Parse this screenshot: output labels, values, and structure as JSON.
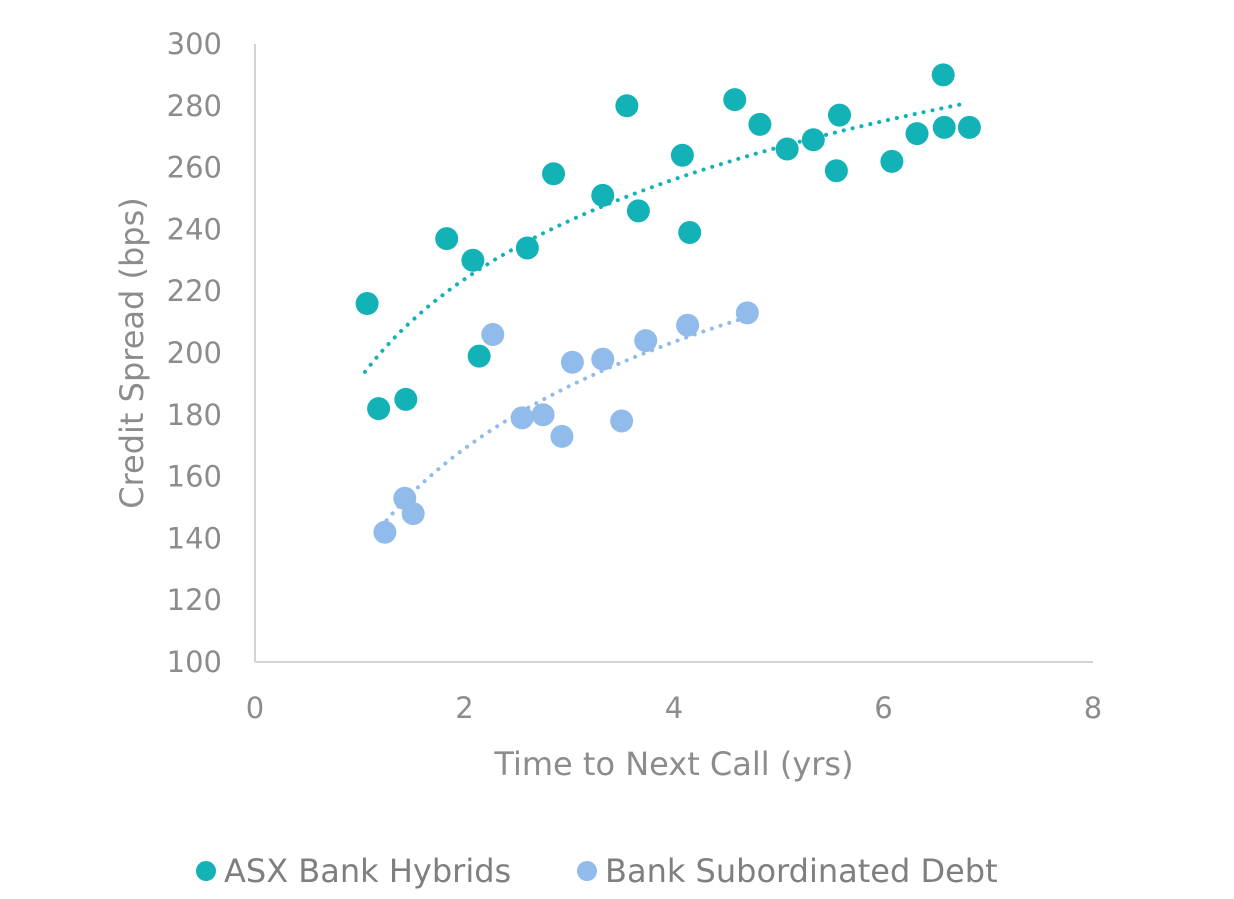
{
  "chart_data": {
    "type": "scatter",
    "title": "",
    "xlabel": "Time to Next Call (yrs)",
    "ylabel": "Credit Spread (bps)",
    "xlim": [
      0,
      8
    ],
    "ylim": [
      100,
      300
    ],
    "x_ticks": [
      0,
      2,
      4,
      6,
      8
    ],
    "y_ticks": [
      100,
      120,
      140,
      160,
      180,
      200,
      220,
      240,
      260,
      280,
      300
    ],
    "grid": false,
    "legend_position": "bottom",
    "trendline": "logarithmic, dotted",
    "series": [
      {
        "name": "ASX Bank Hybrids",
        "color": "#12b2b6",
        "trend_x_range": [
          1.05,
          6.8
        ],
        "points": [
          [
            1.07,
            216
          ],
          [
            1.18,
            182
          ],
          [
            1.44,
            185
          ],
          [
            1.83,
            237
          ],
          [
            2.08,
            230
          ],
          [
            2.14,
            199
          ],
          [
            2.6,
            234
          ],
          [
            2.85,
            258
          ],
          [
            3.32,
            251
          ],
          [
            3.55,
            280
          ],
          [
            3.66,
            246
          ],
          [
            4.08,
            264
          ],
          [
            4.15,
            239
          ],
          [
            4.58,
            282
          ],
          [
            4.82,
            274
          ],
          [
            5.08,
            266
          ],
          [
            5.33,
            269
          ],
          [
            5.55,
            259
          ],
          [
            5.58,
            277
          ],
          [
            6.08,
            262
          ],
          [
            6.32,
            271
          ],
          [
            6.57,
            290
          ],
          [
            6.58,
            273
          ],
          [
            6.82,
            273
          ]
        ]
      },
      {
        "name": "Bank Subordinated Debt",
        "color": "#91bbea",
        "trend_x_range": [
          1.2,
          4.7
        ],
        "points": [
          [
            1.24,
            142
          ],
          [
            1.43,
            153
          ],
          [
            1.51,
            148
          ],
          [
            2.27,
            206
          ],
          [
            2.55,
            179
          ],
          [
            2.75,
            180
          ],
          [
            2.93,
            173
          ],
          [
            3.03,
            197
          ],
          [
            3.32,
            198
          ],
          [
            3.5,
            178
          ],
          [
            3.73,
            204
          ],
          [
            4.13,
            209
          ],
          [
            4.7,
            213
          ]
        ]
      }
    ]
  }
}
